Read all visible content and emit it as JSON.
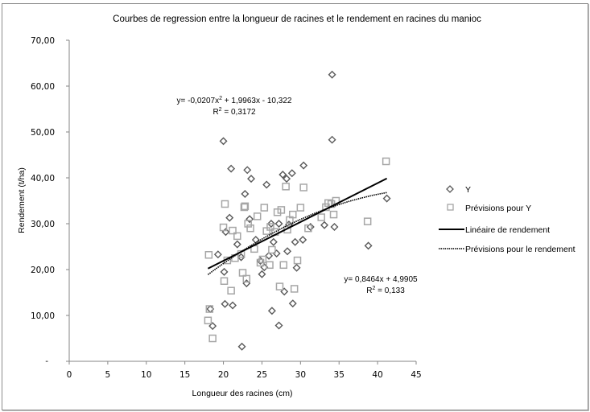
{
  "chart_data": {
    "type": "scatter",
    "title": "Courbes de regression entre la longueur de racines et le rendement en racines du manioc",
    "xlabel": "Longueur des racines  (cm)",
    "ylabel": "Rendement (t/ha)",
    "xlim": [
      0,
      45
    ],
    "ylim": [
      0,
      70
    ],
    "x_ticks": [
      "0",
      "5",
      "10",
      "15",
      "20",
      "25",
      "30",
      "35",
      "40",
      "45"
    ],
    "x_tick_values": [
      0,
      5,
      10,
      15,
      20,
      25,
      30,
      35,
      40,
      45
    ],
    "y_ticks": [
      "10,00",
      "20,00",
      "30,00",
      "40,00",
      "50,00",
      "60,00",
      "70,00"
    ],
    "y_tick_values": [
      10,
      20,
      30,
      40,
      50,
      60,
      70
    ],
    "y_zero_tick": "-",
    "grid": false,
    "legend_position": "right",
    "series": [
      {
        "name": "Y",
        "marker": "diamond",
        "color": "#595959",
        "points": [
          [
            18.3,
            11.4
          ],
          [
            18.6,
            7.7
          ],
          [
            20.0,
            48.0
          ],
          [
            20.1,
            19.5
          ],
          [
            20.3,
            28.2
          ],
          [
            20.2,
            12.5
          ],
          [
            21.0,
            42.0
          ],
          [
            20.8,
            31.3
          ],
          [
            21.2,
            12.2
          ],
          [
            21.8,
            25.5
          ],
          [
            22.3,
            22.7
          ],
          [
            22.8,
            36.5
          ],
          [
            23.0,
            17.0
          ],
          [
            23.1,
            41.7
          ],
          [
            23.4,
            31.0
          ],
          [
            23.6,
            39.8
          ],
          [
            24.2,
            26.5
          ],
          [
            25.0,
            19.0
          ],
          [
            25.3,
            20.5
          ],
          [
            25.6,
            38.5
          ],
          [
            25.9,
            23.0
          ],
          [
            26.3,
            11.0
          ],
          [
            26.5,
            26.0
          ],
          [
            26.9,
            23.5
          ],
          [
            27.2,
            30.0
          ],
          [
            27.2,
            7.8
          ],
          [
            27.7,
            40.7
          ],
          [
            27.9,
            15.2
          ],
          [
            28.2,
            39.8
          ],
          [
            28.3,
            24.0
          ],
          [
            28.5,
            29.8
          ],
          [
            28.9,
            41.0
          ],
          [
            29.0,
            12.6
          ],
          [
            29.3,
            26.0
          ],
          [
            29.5,
            20.4
          ],
          [
            30.3,
            26.5
          ],
          [
            30.4,
            42.7
          ],
          [
            31.3,
            29.3
          ],
          [
            33.1,
            29.7
          ],
          [
            34.1,
            62.5
          ],
          [
            34.1,
            48.3
          ],
          [
            34.4,
            29.3
          ],
          [
            38.8,
            25.2
          ],
          [
            41.2,
            35.5
          ],
          [
            22.4,
            3.2
          ],
          [
            26.2,
            30.0
          ],
          [
            24.8,
            21.9
          ],
          [
            19.3,
            23.3
          ]
        ]
      },
      {
        "name": "Prévisions pour Y",
        "marker": "square",
        "color": "#a6a6a6",
        "points": [
          [
            18.0,
            8.9
          ],
          [
            18.2,
            11.4
          ],
          [
            18.1,
            23.2
          ],
          [
            18.6,
            5.0
          ],
          [
            20.0,
            29.2
          ],
          [
            20.1,
            17.5
          ],
          [
            20.2,
            34.3
          ],
          [
            20.5,
            22.0
          ],
          [
            21.0,
            15.4
          ],
          [
            21.2,
            28.5
          ],
          [
            21.5,
            22.5
          ],
          [
            21.8,
            27.3
          ],
          [
            22.5,
            19.3
          ],
          [
            22.7,
            33.6
          ],
          [
            22.8,
            33.8
          ],
          [
            23.0,
            18.0
          ],
          [
            23.2,
            30.0
          ],
          [
            23.5,
            29.0
          ],
          [
            24.0,
            24.5
          ],
          [
            24.4,
            31.6
          ],
          [
            24.8,
            21.5
          ],
          [
            25.1,
            22.2
          ],
          [
            25.3,
            33.5
          ],
          [
            25.6,
            28.4
          ],
          [
            26.0,
            21.0
          ],
          [
            26.3,
            24.3
          ],
          [
            26.7,
            28.2
          ],
          [
            27.0,
            32.5
          ],
          [
            27.3,
            16.3
          ],
          [
            27.5,
            33.0
          ],
          [
            27.8,
            21.0
          ],
          [
            28.1,
            38.1
          ],
          [
            28.3,
            28.7
          ],
          [
            28.6,
            30.8
          ],
          [
            29.0,
            32.0
          ],
          [
            29.2,
            15.8
          ],
          [
            29.6,
            22.0
          ],
          [
            30.0,
            33.5
          ],
          [
            30.4,
            37.9
          ],
          [
            31.0,
            29.0
          ],
          [
            32.7,
            31.4
          ],
          [
            33.3,
            33.6
          ],
          [
            33.6,
            34.5
          ],
          [
            34.0,
            34.3
          ],
          [
            34.3,
            32.0
          ],
          [
            34.6,
            35.0
          ],
          [
            38.7,
            30.5
          ],
          [
            41.1,
            43.6
          ],
          [
            26.1,
            29.3
          ],
          [
            22.3,
            23.4
          ]
        ]
      },
      {
        "name": "Linéaire de rendement",
        "type": "line",
        "style": "solid",
        "color": "#000000",
        "equation": "y= 0,8464x + 4,9905",
        "r2": "R² = 0,133",
        "slope": 0.8464,
        "intercept": 4.9905,
        "x_range": [
          18.0,
          41.2
        ]
      },
      {
        "name": "Prévisions pour le rendement",
        "type": "line",
        "style": "dotted",
        "color": "#000000",
        "equation": "y= -0,0207x² + 1,9963x - 10,322",
        "r2": "R² = 0,3172",
        "coefficients": [
          -0.0207,
          1.9963,
          -10.322
        ],
        "x_range": [
          18.0,
          41.2
        ]
      }
    ]
  },
  "annotations": {
    "poly_eq": "y= -0,0207x",
    "poly_eq_sup": "2",
    "poly_eq_rest": " + 1,9963x - 10,322",
    "poly_r2_label": "R",
    "poly_r2_sup": "2",
    "poly_r2_value": " = 0,3172",
    "lin_eq": "y= 0,8464x + 4,9905",
    "lin_r2_label": "R",
    "lin_r2_sup": "2",
    "lin_r2_value": " = 0,133"
  }
}
